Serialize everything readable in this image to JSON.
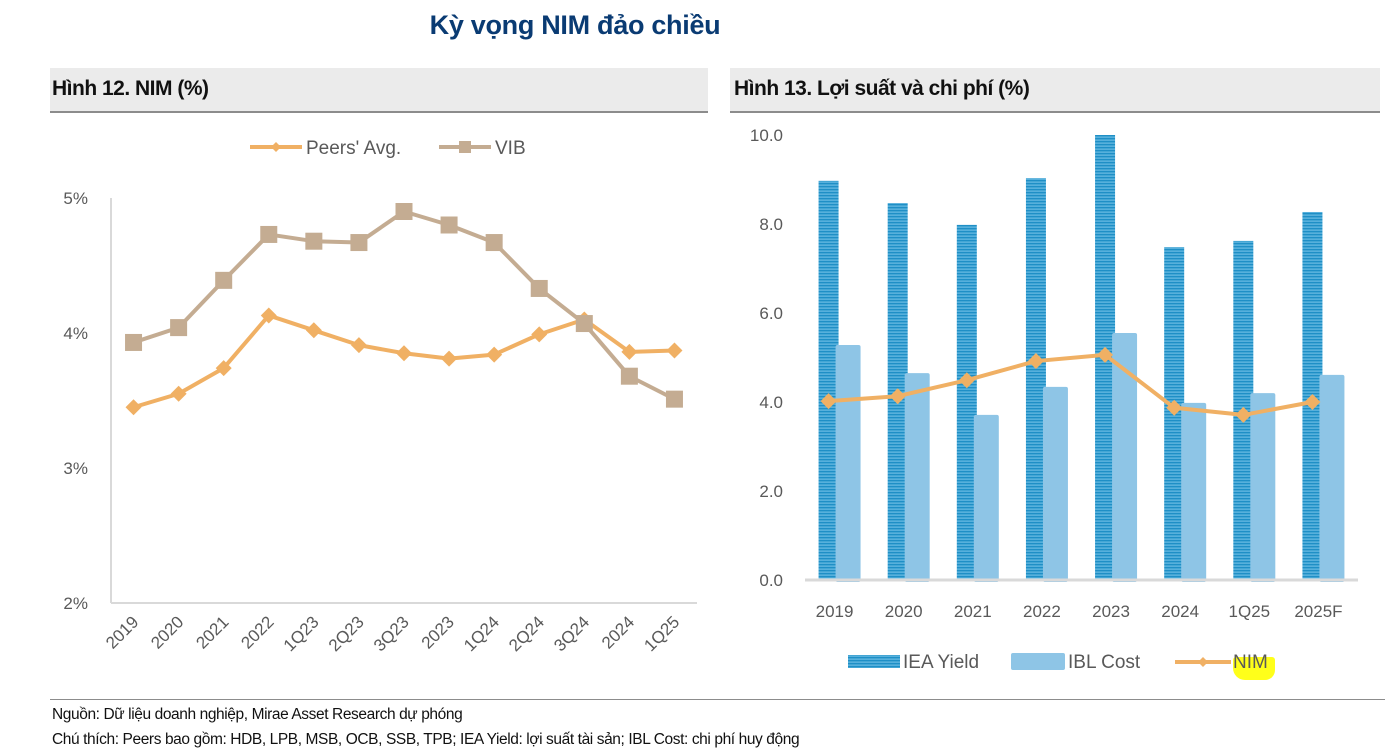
{
  "page": {
    "title": "Kỳ vọng NIM đảo chiều",
    "footnotes": [
      "Nguồn: Dữ liệu doanh nghiệp, Mirae Asset Research dự phóng",
      "Chú thích: Peers bao gồm: HDB, LPB, MSB, OCB, SSB, TPB; IEA Yield: lợi suất tài sản; IBL Cost: chi phí huy động"
    ]
  },
  "colors": {
    "title": "#0a3b73",
    "peers": "#f0b064",
    "vib": "#c4ac92",
    "iea_yield": "#1f8fc6",
    "iea_stripe": "#7cc7ea",
    "ibl_cost": "#8ec5e6",
    "nim": "#f0b064",
    "axis": "#d9d9d9",
    "highlight": "#ffff1a"
  },
  "chart_data": [
    {
      "type": "line",
      "title": "Hình 12. NIM (%)",
      "xlabel": "",
      "ylabel": "",
      "categories": [
        "2019",
        "2020",
        "2021",
        "2022",
        "1Q23",
        "2Q23",
        "3Q23",
        "2023",
        "1Q24",
        "2Q24",
        "3Q24",
        "2024",
        "1Q25"
      ],
      "series": [
        {
          "name": "Peers' Avg.",
          "marker": "diamond",
          "values": [
            3.45,
            3.55,
            3.74,
            4.13,
            4.02,
            3.91,
            3.85,
            3.81,
            3.84,
            3.99,
            4.1,
            3.86,
            3.87
          ]
        },
        {
          "name": "VIB",
          "marker": "square",
          "values": [
            3.93,
            4.04,
            4.39,
            4.73,
            4.68,
            4.67,
            4.9,
            4.8,
            4.67,
            4.33,
            4.07,
            3.68,
            3.51
          ]
        }
      ],
      "ylim": [
        2,
        5
      ],
      "yticks": [
        "2%",
        "3%",
        "4%",
        "5%"
      ],
      "grid": false,
      "legend": "top-center"
    },
    {
      "type": "bar",
      "title": "Hình 13. Lợi suất và chi phí (%)",
      "xlabel": "",
      "ylabel": "",
      "categories": [
        "2019",
        "2020",
        "2021",
        "2022",
        "2023",
        "2024",
        "1Q25",
        "2025F"
      ],
      "series": [
        {
          "name": "IEA Yield",
          "kind": "bar",
          "values": [
            8.97,
            8.47,
            7.98,
            9.03,
            10.0,
            7.48,
            7.62,
            8.27
          ]
        },
        {
          "name": "IBL Cost",
          "kind": "bar",
          "values": [
            5.28,
            4.65,
            3.71,
            4.34,
            5.55,
            3.98,
            4.2,
            4.61
          ]
        },
        {
          "name": "NIM",
          "kind": "line",
          "marker": "diamond",
          "values": [
            4.02,
            4.13,
            4.49,
            4.92,
            5.06,
            3.87,
            3.71,
            4.0
          ]
        }
      ],
      "ylim": [
        0,
        10
      ],
      "yticks": [
        "0.0",
        "2.0",
        "4.0",
        "6.0",
        "8.0",
        "10.0"
      ],
      "grid": false,
      "legend": "bottom-center"
    }
  ]
}
